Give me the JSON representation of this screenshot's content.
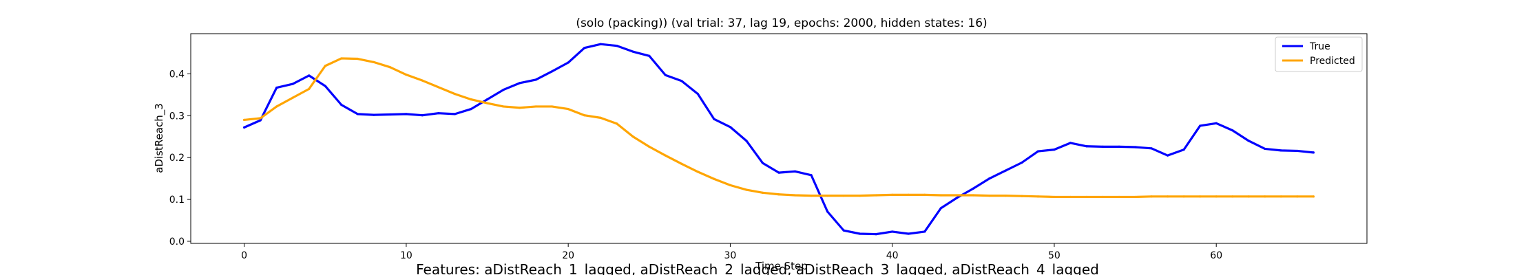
{
  "chart_data": {
    "type": "line",
    "title": "(solo (packing)) (val trial: 37, lag 19, epochs: 2000, hidden states: 16)",
    "xlabel": "Time Step",
    "ylabel": "aDistReach_3",
    "xlim": [
      -3.3,
      69.3
    ],
    "ylim": [
      -0.005,
      0.496
    ],
    "xticks": [
      0,
      10,
      20,
      30,
      40,
      50,
      60
    ],
    "yticks": [
      0.0,
      0.1,
      0.2,
      0.3,
      0.4
    ],
    "grid": false,
    "legend_position": "top-right",
    "x": [
      0,
      1,
      2,
      3,
      4,
      5,
      6,
      7,
      8,
      9,
      10,
      11,
      12,
      13,
      14,
      15,
      16,
      17,
      18,
      19,
      20,
      21,
      22,
      23,
      24,
      25,
      26,
      27,
      28,
      29,
      30,
      31,
      32,
      33,
      34,
      35,
      36,
      37,
      38,
      39,
      40,
      41,
      42,
      43,
      44,
      45,
      46,
      47,
      48,
      49,
      50,
      51,
      52,
      53,
      54,
      55,
      56,
      57,
      58,
      59,
      60,
      61,
      62,
      63,
      64,
      65,
      66
    ],
    "series": [
      {
        "name": "True",
        "color": "#0000ff",
        "values": [
          0.272,
          0.289,
          0.367,
          0.376,
          0.396,
          0.371,
          0.326,
          0.304,
          0.302,
          0.303,
          0.304,
          0.301,
          0.306,
          0.304,
          0.316,
          0.339,
          0.362,
          0.378,
          0.386,
          0.406,
          0.427,
          0.462,
          0.471,
          0.467,
          0.453,
          0.443,
          0.397,
          0.383,
          0.352,
          0.292,
          0.273,
          0.24,
          0.187,
          0.164,
          0.167,
          0.158,
          0.071,
          0.026,
          0.018,
          0.017,
          0.023,
          0.018,
          0.023,
          0.079,
          0.104,
          0.126,
          0.15,
          0.169,
          0.188,
          0.215,
          0.219,
          0.235,
          0.227,
          0.226,
          0.226,
          0.225,
          0.222,
          0.205,
          0.219,
          0.276,
          0.282,
          0.265,
          0.24,
          0.221,
          0.217,
          0.216,
          0.212
        ]
      },
      {
        "name": "Predicted",
        "color": "#ffa500",
        "values": [
          0.29,
          0.294,
          0.322,
          0.343,
          0.364,
          0.419,
          0.437,
          0.436,
          0.428,
          0.416,
          0.398,
          0.384,
          0.368,
          0.352,
          0.339,
          0.33,
          0.322,
          0.319,
          0.322,
          0.322,
          0.316,
          0.301,
          0.295,
          0.281,
          0.25,
          0.226,
          0.205,
          0.185,
          0.166,
          0.149,
          0.134,
          0.123,
          0.116,
          0.112,
          0.11,
          0.109,
          0.109,
          0.109,
          0.109,
          0.11,
          0.111,
          0.111,
          0.111,
          0.11,
          0.11,
          0.11,
          0.109,
          0.109,
          0.108,
          0.107,
          0.106,
          0.106,
          0.106,
          0.106,
          0.106,
          0.106,
          0.107,
          0.107,
          0.107,
          0.107,
          0.107,
          0.107,
          0.107,
          0.107,
          0.107,
          0.107,
          0.107
        ]
      }
    ]
  },
  "features_caption": "Features: aDistReach_1_lagged, aDistReach_2_lagged, aDistReach_3_lagged, aDistReach_4_lagged"
}
